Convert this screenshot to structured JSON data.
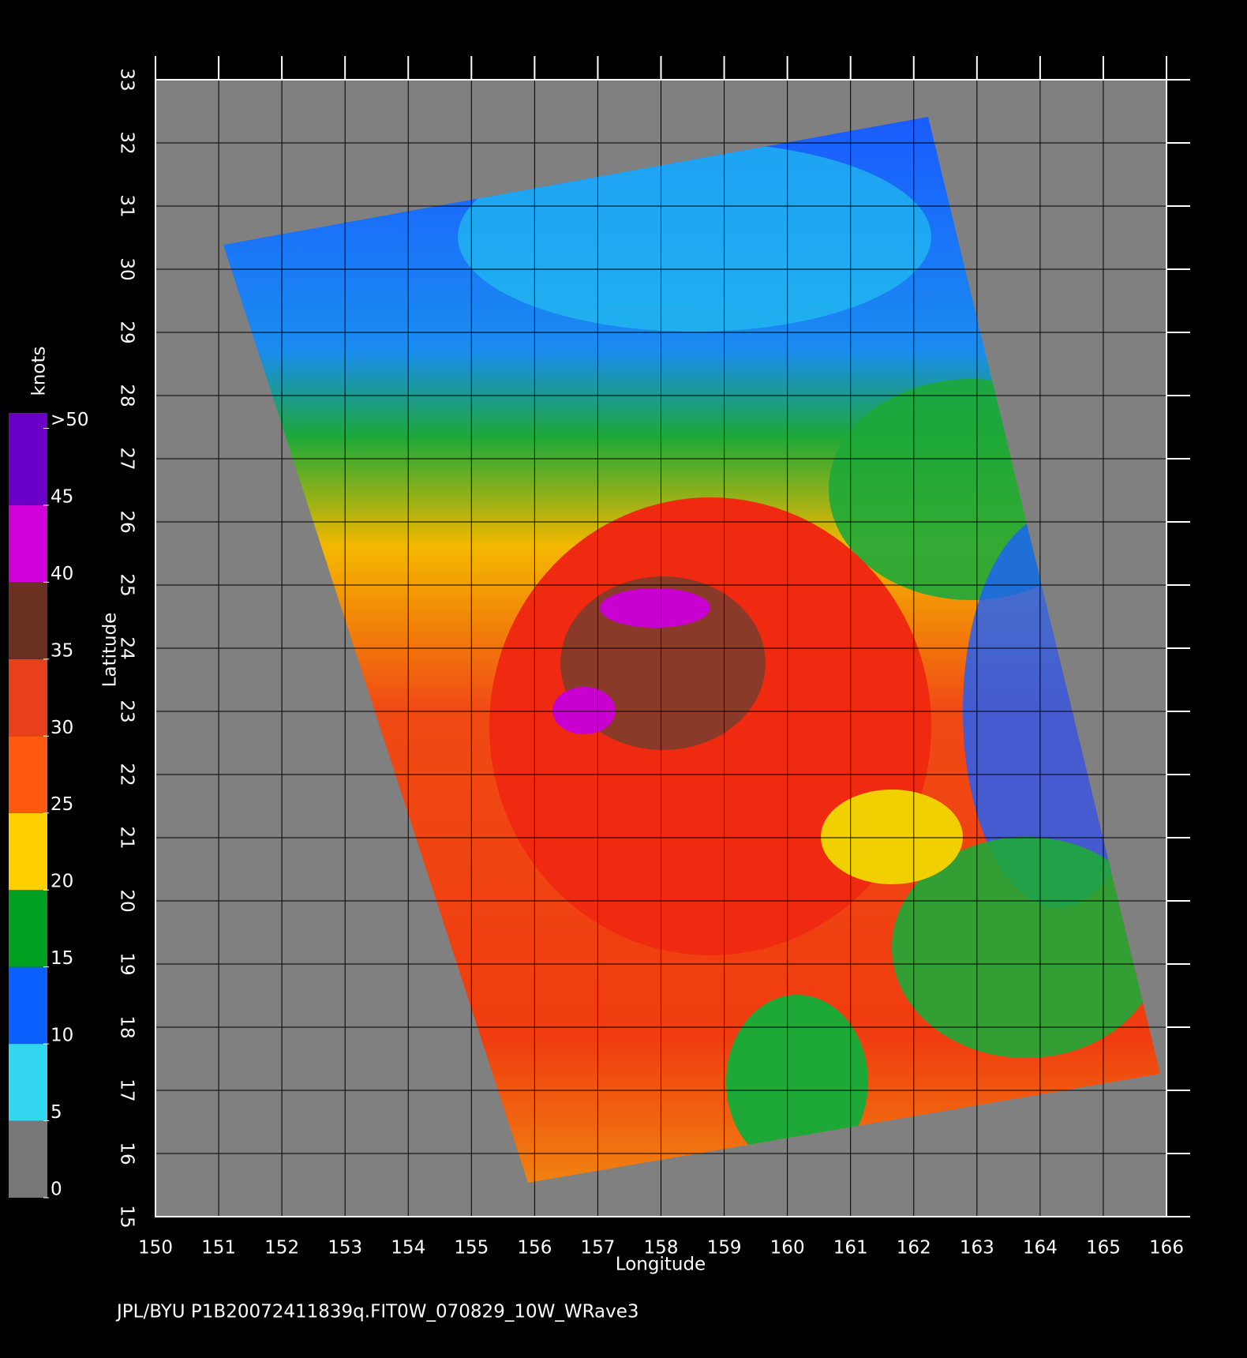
{
  "chart_data": {
    "type": "map",
    "xlabel": "Longitude",
    "ylabel": "Latitude",
    "xlim": [
      150,
      166
    ],
    "ylim": [
      15,
      33
    ],
    "xticks": [
      150,
      151,
      152,
      153,
      154,
      155,
      156,
      157,
      158,
      159,
      160,
      161,
      162,
      163,
      164,
      165,
      166
    ],
    "yticks": [
      15,
      16,
      17,
      18,
      19,
      20,
      21,
      22,
      23,
      24,
      25,
      26,
      27,
      28,
      29,
      30,
      31,
      32,
      33
    ],
    "grid": true,
    "colorbar": {
      "label": "knots",
      "lim": [
        0,
        51
      ],
      "ticks": [
        0,
        5,
        10,
        15,
        20,
        25,
        30,
        35,
        40,
        45,
        {
          "value": 50,
          "label": ">50"
        }
      ],
      "colors": [
        "#777777",
        "#33d8f0",
        "#0a60ff",
        "#00a020",
        "#ffd000",
        "#ff5a10",
        "#e8401a",
        "#6a3020",
        "#d000d8",
        "#6a00c8"
      ]
    },
    "footer": "JPL/BYU  P1B20072411839q.FIT0W_070829_10W_WRave3"
  }
}
